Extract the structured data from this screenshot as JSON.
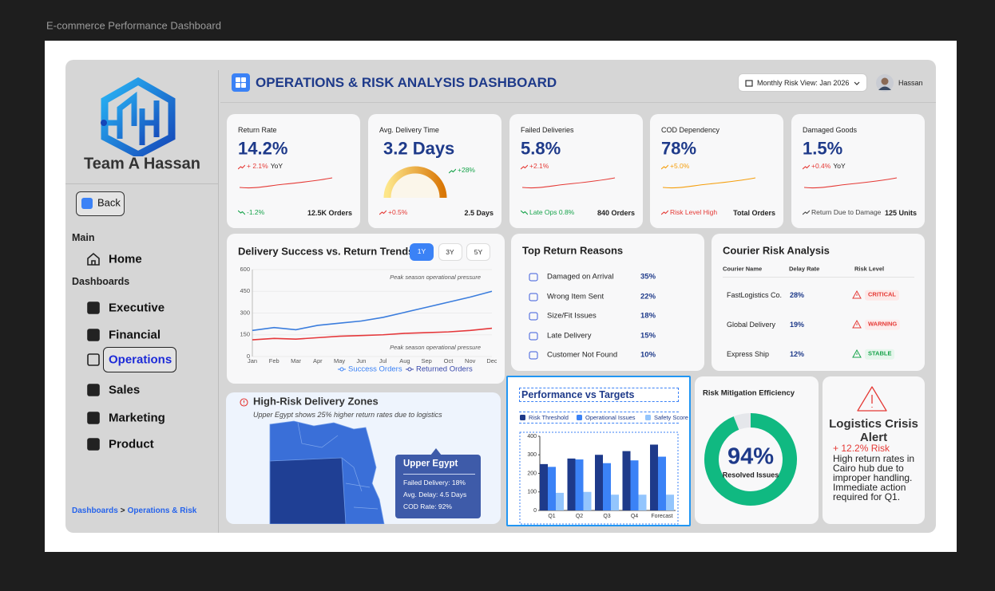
{
  "page_title": "E-commerce Performance Dashboard",
  "sidebar": {
    "brand": "Team A Hassan",
    "back": "Back",
    "sections": [
      {
        "label": "Main",
        "items": [
          {
            "label": "Home"
          }
        ]
      },
      {
        "label": "Dashboards",
        "items": [
          {
            "label": "Executive"
          },
          {
            "label": "Financial"
          },
          {
            "label": "Operations",
            "active": true
          },
          {
            "label": "Sales"
          },
          {
            "label": "Marketing"
          },
          {
            "label": "Product"
          }
        ]
      }
    ],
    "breadcrumb": [
      "Dashboards",
      ">",
      "Operations & Risk"
    ]
  },
  "header": {
    "title": "OPERATIONS & RISK ANALYSIS DASHBOARD",
    "period": "Monthly Risk View: Jan 2026",
    "user": "Hassan"
  },
  "kpis": [
    {
      "label": "Return Rate",
      "value": "14.2%",
      "trend": "+ 2.1%",
      "trend_note": "YoY",
      "trend_color": "#e53935",
      "spark_color": "#e53935",
      "foot_left": "-1.2%",
      "foot_left_color": "#16a34a",
      "foot_right": "12.5K Orders"
    },
    {
      "label": "Avg. Delivery Time",
      "value": "3.2 Days",
      "gauge_badge": "+28%",
      "foot_left": "+0.5%",
      "foot_left_color": "#e53935",
      "foot_right": "2.5 Days"
    },
    {
      "label": "Failed Deliveries",
      "value": "5.8%",
      "trend": "+2.1%",
      "trend_color": "#e53935",
      "spark_color": "#e53935",
      "foot_left": "Late Ops 0.8%",
      "foot_left_color": "#16a34a",
      "foot_right": "840 Orders"
    },
    {
      "label": "COD Dependency",
      "value": "78%",
      "trend": "+5.0%",
      "trend_color": "#f59e0b",
      "spark_color": "#f59e0b",
      "foot_left": "Risk Level High",
      "foot_left_color": "#e53935",
      "foot_right": "Total Orders"
    },
    {
      "label": "Damaged Goods",
      "value": "1.5%",
      "trend": "+0.4%",
      "trend_note": "YoY",
      "trend_color": "#e53935",
      "spark_color": "#e53935",
      "foot_left": "Return Due to Damage",
      "foot_left_color": "#444444",
      "foot_right": "125 Units"
    }
  ],
  "chart_data": [
    {
      "type": "line",
      "title": "Delivery Success vs. Return Trends",
      "range_buttons": [
        {
          "label": "1Y",
          "active": true
        },
        {
          "label": "3Y"
        },
        {
          "label": "5Y"
        }
      ],
      "categories": [
        "Jan",
        "Feb",
        "Mar",
        "Apr",
        "May",
        "Jun",
        "Jul",
        "Aug",
        "Sep",
        "Oct",
        "Nov",
        "Dec"
      ],
      "series": [
        {
          "name": "Success Orders",
          "color": "#3b7ddd",
          "legend_color": "#3b82f6",
          "values": [
            180,
            200,
            185,
            215,
            230,
            245,
            270,
            305,
            340,
            375,
            410,
            450
          ]
        },
        {
          "name": "Returned Orders",
          "color": "#e5383b",
          "legend_color": "#3949ab",
          "values": [
            115,
            125,
            120,
            130,
            140,
            145,
            150,
            160,
            165,
            170,
            180,
            195
          ]
        }
      ],
      "ylim": [
        0,
        600
      ],
      "yticks": [
        0,
        150,
        300,
        450,
        600
      ],
      "grid": true,
      "legend": "bottom",
      "annotations": [
        "Peak season operational pressure",
        "Peak season operational pressure"
      ]
    },
    {
      "type": "bar",
      "title": "Performance vs Targets",
      "categories": [
        "Q1",
        "Q2",
        "Q3",
        "Q4",
        "Forecast"
      ],
      "series": [
        {
          "name": "Risk Threshold",
          "color": "#1e3a8a",
          "values": [
            250,
            280,
            300,
            320,
            355
          ]
        },
        {
          "name": "Operational Issues",
          "color": "#3b82f6",
          "values": [
            235,
            275,
            255,
            270,
            290
          ]
        },
        {
          "name": "Safety Score",
          "color": "#93c5fd",
          "values": [
            95,
            100,
            85,
            85,
            85
          ]
        }
      ],
      "ylim": [
        0,
        400
      ],
      "yticks": [
        0,
        100,
        200,
        300,
        400
      ],
      "grid": false,
      "legend": "top"
    },
    {
      "type": "donut",
      "title": "Risk Mitigation Efficiency",
      "value": 94,
      "value_label": "94%",
      "subtitle": "Resolved Issues",
      "color": "#10b981",
      "track_color": "#e5e7eb"
    }
  ],
  "map": {
    "title": "High-Risk Delivery Zones",
    "subtitle": "Upper Egypt shows 25% higher return rates due to logistics",
    "tooltip": {
      "title": "Upper Egypt",
      "lines": [
        "Failed Delivery: 18%",
        "Avg. Delay: 4.5 Days",
        "COD Rate: 92%"
      ]
    }
  },
  "reasons": {
    "title": "Top Return Reasons",
    "rows": [
      {
        "label": "Damaged on Arrival",
        "share": "35%"
      },
      {
        "label": "Wrong Item Sent",
        "share": "22%"
      },
      {
        "label": "Size/Fit Issues",
        "share": "18%"
      },
      {
        "label": "Late Delivery",
        "share": "15%"
      },
      {
        "label": "Customer Not Found",
        "share": "10%"
      }
    ]
  },
  "courier": {
    "title": "Courier Risk Analysis",
    "columns": [
      "Courier Name",
      "Delay Rate",
      "Risk Level"
    ],
    "rows": [
      {
        "name": "FastLogistics Co.",
        "delay": "28%",
        "risk": "CRITICAL",
        "tone": "#e53935",
        "tint": "#fde8e8"
      },
      {
        "name": "Global Delivery",
        "delay": "19%",
        "risk": "WARNING",
        "tone": "#e53935",
        "tint": "#fdecec"
      },
      {
        "name": "Express Ship",
        "delay": "12%",
        "risk": "STABLE",
        "tone": "#16a34a",
        "tint": "#e6f6ec"
      }
    ]
  },
  "alert": {
    "title": "Logistics Crisis Alert",
    "risk": "+ 12.2% Risk",
    "body": "High return rates in Cairo hub due to improper handling. Immediate action required for Q1."
  }
}
